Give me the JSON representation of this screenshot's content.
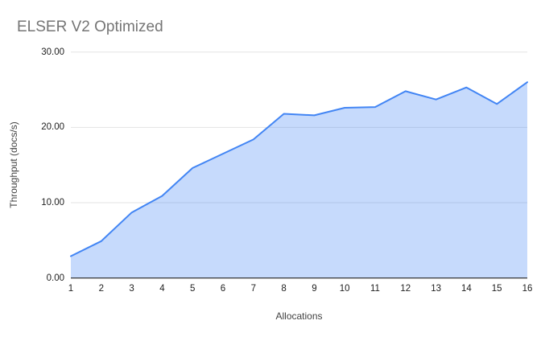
{
  "chart_data": {
    "type": "area",
    "title": "ELSER V2 Optimized",
    "xlabel": "Allocations",
    "ylabel": "Throughput (docs/s)",
    "x": [
      1,
      2,
      3,
      4,
      5,
      6,
      7,
      8,
      9,
      10,
      11,
      12,
      13,
      14,
      15,
      16
    ],
    "series": [
      {
        "name": "Throughput (docs/s)",
        "values": [
          2.9,
          4.9,
          8.7,
          10.9,
          14.6,
          16.5,
          18.4,
          21.8,
          21.6,
          22.6,
          22.7,
          24.8,
          23.7,
          25.3,
          23.1,
          26.0
        ]
      }
    ],
    "ylim": [
      0,
      30
    ],
    "y_tick_values": [
      0,
      10,
      20,
      30
    ],
    "y_tick_labels": [
      "0.00",
      "10.00",
      "20.00",
      "30.00"
    ],
    "x_tick_labels": [
      "1",
      "2",
      "3",
      "4",
      "5",
      "6",
      "7",
      "8",
      "9",
      "10",
      "11",
      "12",
      "13",
      "14",
      "15",
      "16"
    ],
    "grid": true,
    "legend_position": "none",
    "colors": {
      "line": "#4285f4",
      "fill": "rgba(66,133,244,0.3)",
      "gridline": "#e3e3e3",
      "axis_line": "#212121",
      "title_text": "#757575",
      "tick_text": "#212121",
      "axis_title_text": "#424242"
    }
  }
}
